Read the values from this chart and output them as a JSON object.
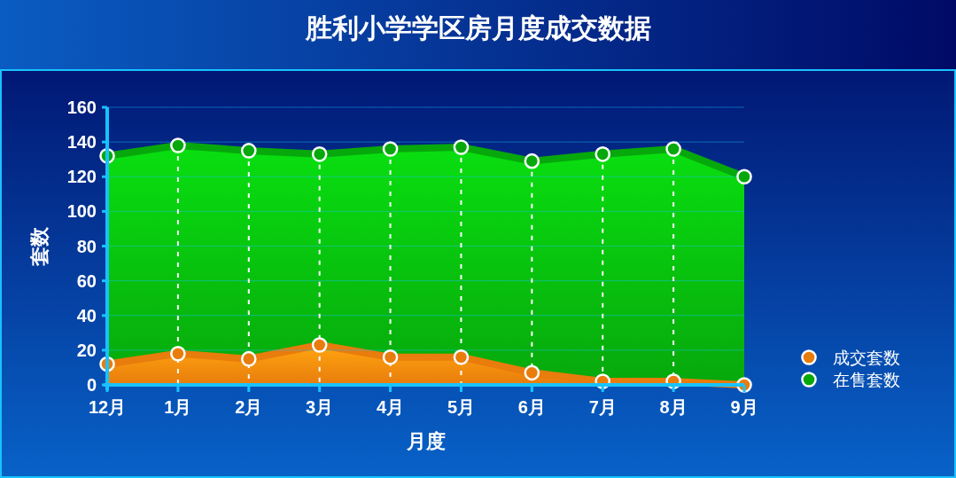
{
  "chart_data": {
    "type": "area",
    "title": "胜利小学学区房月度成交数据",
    "xlabel": "月度",
    "ylabel": "套数",
    "categories": [
      "12月",
      "1月",
      "2月",
      "3月",
      "4月",
      "5月",
      "6月",
      "7月",
      "8月",
      "9月"
    ],
    "series": [
      {
        "name": "成交套数",
        "color": "#e87c0c",
        "values": [
          12,
          18,
          15,
          23,
          16,
          16,
          7,
          2,
          2,
          0
        ]
      },
      {
        "name": "在售套数",
        "color": "#07a80c",
        "values": [
          132,
          138,
          135,
          133,
          136,
          137,
          129,
          133,
          136,
          120
        ]
      }
    ],
    "ylim": [
      0,
      160
    ],
    "yticks": [
      0,
      20,
      40,
      60,
      80,
      100,
      120,
      140,
      160
    ],
    "grid": true,
    "legend": "right",
    "marker": "circle"
  }
}
